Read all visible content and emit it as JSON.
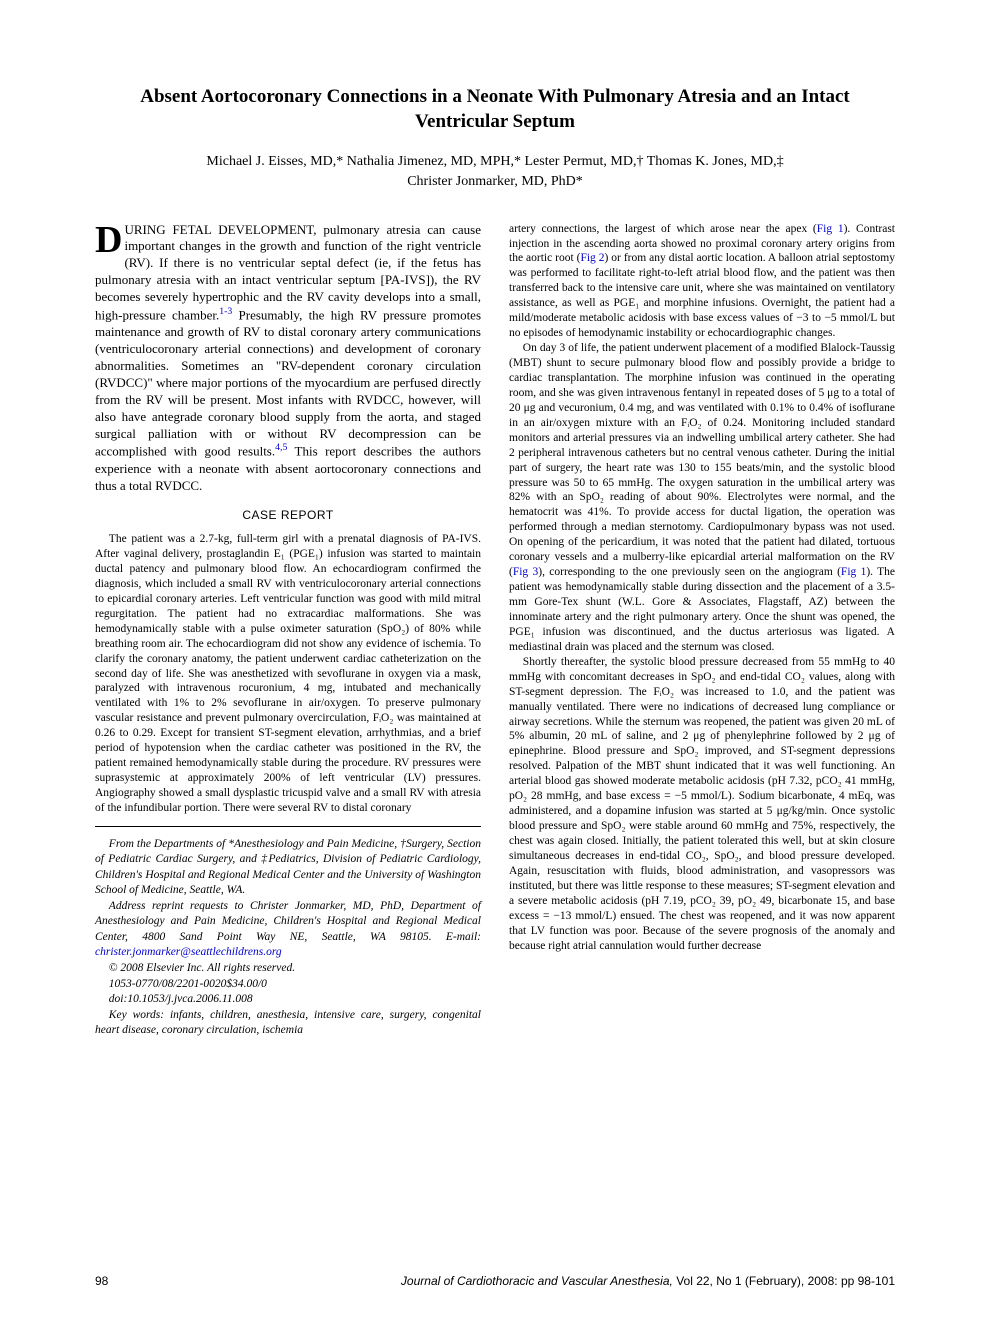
{
  "title": "Absent Aortocoronary Connections in a Neonate With Pulmonary Atresia and an Intact Ventricular Septum",
  "authors_line1": "Michael J. Eisses, MD,* Nathalia Jimenez, MD, MPH,* Lester Permut, MD,† Thomas K. Jones, MD,‡",
  "authors_line2": "Christer Jonmarker, MD, PhD*",
  "left": {
    "intro_firstletter": "D",
    "intro_rest": "URING FETAL DEVELOPMENT, pulmonary atresia can cause important changes in the growth and function of the right ventricle (RV). If there is no ventricular septal defect (ie, if the fetus has pulmonary atresia with an intact ventricular septum [PA-IVS]), the RV becomes severely hypertrophic and the RV cavity develops into a small, high-pressure chamber.",
    "intro_ref1": "1-3",
    "intro_cont": " Presumably, the high RV pressure promotes maintenance and growth of RV to distal coronary artery communications (ventriculocoronary arterial connections) and development of coronary abnormalities. Sometimes an \"RV-dependent coronary circulation (RVDCC)\" where major portions of the myocardium are perfused directly from the RV will be present. Most infants with RVDCC, however, will also have antegrade coronary blood supply from the aorta, and staged surgical palliation with or without RV decompression can be accomplished with good results.",
    "intro_ref2": "4,5",
    "intro_end": " This report describes the authors experience with a neonate with absent aortocoronary connections and thus a total RVDCC.",
    "case_heading": "CASE REPORT",
    "case_p1": "The patient was a 2.7-kg, full-term girl with a prenatal diagnosis of PA-IVS. After vaginal delivery, prostaglandin E₁ (PGE₁) infusion was started to maintain ductal patency and pulmonary blood flow. An echocardiogram confirmed the diagnosis, which included a small RV with ventriculocoronary arterial connections to epicardial coronary arteries. Left ventricular function was good with mild mitral regurgitation. The patient had no extracardiac malformations. She was hemodynamically stable with a pulse oximeter saturation (SpO₂) of 80% while breathing room air. The echocardiogram did not show any evidence of ischemia. To clarify the coronary anatomy, the patient underwent cardiac catheterization on the second day of life. She was anesthetized with sevoflurane in oxygen via a mask, paralyzed with intravenous rocuronium, 4 mg, intubated and mechanically ventilated with 1% to 2% sevoflurane in air/oxygen. To preserve pulmonary vascular resistance and prevent pulmonary overcirculation, FᵢO₂ was maintained at 0.26 to 0.29. Except for transient ST-segment elevation, arrhythmias, and a brief period of hypotension when the cardiac catheter was positioned in the RV, the patient remained hemodynamically stable during the procedure. RV pressures were suprasystemic at approximately 200% of left ventricular (LV) pressures. Angiography showed a small dysplastic tricuspid valve and a small RV with atresia of the infundibular portion. There were several RV to distal coronary",
    "footnote_from": "From the Departments of *Anesthesiology and Pain Medicine, †Surgery, Section of Pediatric Cardiac Surgery, and ‡Pediatrics, Division of Pediatric Cardiology, Children's Hospital and Regional Medical Center and the University of Washington School of Medicine, Seattle, WA.",
    "footnote_addr_a": "Address reprint requests to Christer Jonmarker, MD, PhD, Department of Anesthesiology and Pain Medicine, Children's Hospital and Regional Medical Center, 4800 Sand Point Way NE, Seattle, WA 98105. E-mail: ",
    "footnote_email": "christer.jonmarker@seattlechildrens.org",
    "footnote_copy": "© 2008 Elsevier Inc. All rights reserved.",
    "footnote_issn": "1053-0770/08/2201-0020$34.00/0",
    "footnote_doi": "doi:10.1053/j.jvca.2006.11.008",
    "footnote_keywords": "Key words: infants, children, anesthesia, intensive care, surgery, congenital heart disease, coronary circulation, ischemia"
  },
  "right": {
    "p1a": "artery connections, the largest of which arose near the apex (",
    "fig1": "Fig 1",
    "p1b": "). Contrast injection in the ascending aorta showed no proximal coronary artery origins from the aortic root (",
    "fig2": "Fig 2",
    "p1c": ") or from any distal aortic location. A balloon atrial septostomy was performed to facilitate right-to-left atrial blood flow, and the patient was then transferred back to the intensive care unit, where she was maintained on ventilatory assistance, as well as PGE₁ and morphine infusions. Overnight, the patient had a mild/moderate metabolic acidosis with base excess values of −3 to −5 mmol/L but no episodes of hemodynamic instability or echocardiographic changes.",
    "p2a": "On day 3 of life, the patient underwent placement of a modified Blalock-Taussig (MBT) shunt to secure pulmonary blood flow and possibly provide a bridge to cardiac transplantation. The morphine infusion was continued in the operating room, and she was given intravenous fentanyl in repeated doses of 5 μg to a total of 20 μg and vecuronium, 0.4 mg, and was ventilated with 0.1% to 0.4% of isoflurane in an air/oxygen mixture with an FᵢO₂ of 0.24. Monitoring included standard monitors and arterial pressures via an indwelling umbilical artery catheter. She had 2 peripheral intravenous catheters but no central venous catheter. During the initial part of surgery, the heart rate was 130 to 155 beats/min, and the systolic blood pressure was 50 to 65 mmHg. The oxygen saturation in the umbilical artery was 82% with an SpO₂ reading of about 90%. Electrolytes were normal, and the hematocrit was 41%. To provide access for ductal ligation, the operation was performed through a median sternotomy. Cardiopulmonary bypass was not used. On opening of the pericardium, it was noted that the patient had dilated, tortuous coronary vessels and a mulberry-like epicardial arterial malformation on the RV (",
    "fig3": "Fig 3",
    "p2b": "), corresponding to the one previously seen on the angiogram (",
    "fig1b": "Fig 1",
    "p2c": "). The patient was hemodynamically stable during dissection and the placement of a 3.5-mm Gore-Tex shunt (W.L. Gore & Associates, Flagstaff, AZ) between the innominate artery and the right pulmonary artery. Once the shunt was opened, the PGE₁ infusion was discontinued, and the ductus arteriosus was ligated. A mediastinal drain was placed and the sternum was closed.",
    "p3": "Shortly thereafter, the systolic blood pressure decreased from 55 mmHg to 40 mmHg with concomitant decreases in SpO₂ and end-tidal CO₂ values, along with ST-segment depression. The FᵢO₂ was increased to 1.0, and the patient was manually ventilated. There were no indications of decreased lung compliance or airway secretions. While the sternum was reopened, the patient was given 20 mL of 5% albumin, 20 mL of saline, and 2 μg of phenylephrine followed by 2 μg of epinephrine. Blood pressure and SpO₂ improved, and ST-segment depressions resolved. Palpation of the MBT shunt indicated that it was well functioning. An arterial blood gas showed moderate metabolic acidosis (pH 7.32, pCO₂ 41 mmHg, pO₂ 28 mmHg, and base excess = −5 mmol/L). Sodium bicarbonate, 4 mEq, was administered, and a dopamine infusion was started at 5 μg/kg/min. Once systolic blood pressure and SpO₂ were stable around 60 mmHg and 75%, respectively, the chest was again closed. Initially, the patient tolerated this well, but at skin closure simultaneous decreases in end-tidal CO₂, SpO₂, and blood pressure developed. Again, resuscitation with fluids, blood administration, and vasopressors was instituted, but there was little response to these measures; ST-segment elevation and a severe metabolic acidosis (pH 7.19, pCO₂ 39, pO₂ 49, bicarbonate 15, and base excess = −13 mmol/L) ensued. The chest was reopened, and it was now apparent that LV function was poor. Because of the severe prognosis of the anomaly and because right atrial cannulation would further decrease"
  },
  "footer": {
    "page": "98",
    "journal": "Journal of Cardiothoracic and Vascular Anesthesia,",
    "citation": " Vol 22, No 1 (February), 2008: pp 98-101"
  }
}
